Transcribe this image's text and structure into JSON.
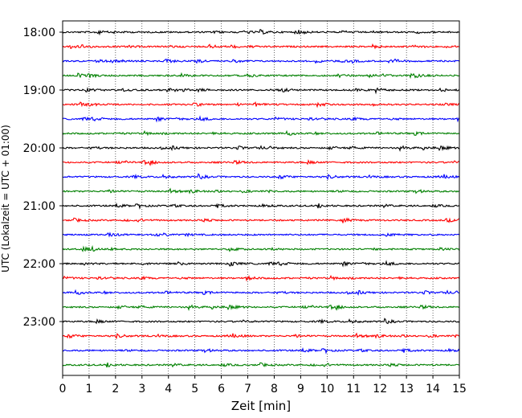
{
  "chart_data": {
    "type": "line",
    "title": "",
    "xlabel": "Zeit  [min]",
    "ylabel": "UTC (Lokalzeit = UTC + 01:00)",
    "xlim": [
      0,
      15
    ],
    "x_ticks": [
      0,
      1,
      2,
      3,
      4,
      5,
      6,
      7,
      8,
      9,
      10,
      11,
      12,
      13,
      14,
      15
    ],
    "y_tick_labels": [
      "18:00",
      "19:00",
      "20:00",
      "21:00",
      "22:00",
      "23:00"
    ],
    "grid": "vertical dotted lines at each minute",
    "trace_colors": [
      "#000000",
      "#ff0000",
      "#0000ff",
      "#008000"
    ],
    "traces": [
      {
        "start": "18:00",
        "color": "#000000"
      },
      {
        "start": "18:15",
        "color": "#ff0000"
      },
      {
        "start": "18:30",
        "color": "#0000ff"
      },
      {
        "start": "18:45",
        "color": "#008000"
      },
      {
        "start": "19:00",
        "color": "#000000"
      },
      {
        "start": "19:15",
        "color": "#ff0000"
      },
      {
        "start": "19:30",
        "color": "#0000ff"
      },
      {
        "start": "19:45",
        "color": "#008000"
      },
      {
        "start": "20:00",
        "color": "#000000"
      },
      {
        "start": "20:15",
        "color": "#ff0000"
      },
      {
        "start": "20:30",
        "color": "#0000ff"
      },
      {
        "start": "20:45",
        "color": "#008000"
      },
      {
        "start": "21:00",
        "color": "#000000"
      },
      {
        "start": "21:15",
        "color": "#ff0000"
      },
      {
        "start": "21:30",
        "color": "#0000ff"
      },
      {
        "start": "21:45",
        "color": "#008000"
      },
      {
        "start": "22:00",
        "color": "#000000"
      },
      {
        "start": "22:15",
        "color": "#ff0000"
      },
      {
        "start": "22:30",
        "color": "#0000ff"
      },
      {
        "start": "22:45",
        "color": "#008000"
      },
      {
        "start": "23:00",
        "color": "#000000"
      },
      {
        "start": "23:15",
        "color": "#ff0000"
      },
      {
        "start": "23:30",
        "color": "#0000ff"
      },
      {
        "start": "23:45",
        "color": "#008000"
      }
    ]
  }
}
